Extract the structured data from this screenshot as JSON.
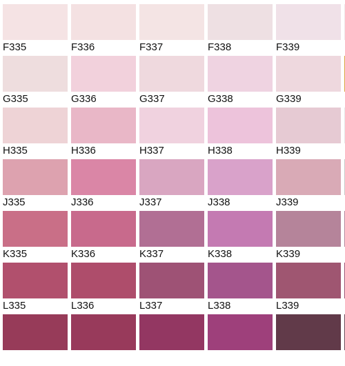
{
  "palette": {
    "rows": [
      {
        "labels": [
          "F335",
          "F336",
          "F337",
          "F338",
          "F339"
        ],
        "colors": [
          "#F5E3E4",
          "#F4E1E2",
          "#F4E4E4",
          "#EEE0E3",
          "#F0E1E8"
        ]
      },
      {
        "labels": [
          "G335",
          "G336",
          "G337",
          "G338",
          "G339"
        ],
        "colors": [
          "#EEDDDE",
          "#F2D1DC",
          "#EFD9DE",
          "#EFD3E1",
          "#EED8DE"
        ]
      },
      {
        "labels": [
          "H335",
          "H336",
          "H337",
          "H338",
          "H339"
        ],
        "colors": [
          "#EED3D6",
          "#E9B7C7",
          "#F0D2DF",
          "#EDC3DB",
          "#E6CAD3"
        ]
      },
      {
        "labels": [
          "J335",
          "J336",
          "J337",
          "J338",
          "J339"
        ],
        "colors": [
          "#DDA2AF",
          "#DA86A6",
          "#D9A6C1",
          "#D9A2CA",
          "#D9AAB6"
        ]
      },
      {
        "labels": [
          "K335",
          "K336",
          "K337",
          "K338",
          "K339"
        ],
        "colors": [
          "#C96F87",
          "#C86A8C",
          "#B16F94",
          "#C47AB2",
          "#B5849A"
        ]
      },
      {
        "labels": [
          "L335",
          "L336",
          "L337",
          "L338",
          "L339"
        ],
        "colors": [
          "#B1506D",
          "#AE4D6B",
          "#9E5275",
          "#A4558C",
          "#9F5671"
        ]
      },
      {
        "labels": [
          "",
          "",
          "",
          "",
          ""
        ],
        "colors": [
          "#973B59",
          "#983A5B",
          "#933762",
          "#9E407B",
          "#613A49"
        ]
      }
    ],
    "edge_colors": [
      "#F0E6E8",
      "#D9A640",
      "#E6E6E6",
      "#C7C7C7",
      "#B6849A",
      "#9D5272",
      "#6B4655"
    ]
  }
}
